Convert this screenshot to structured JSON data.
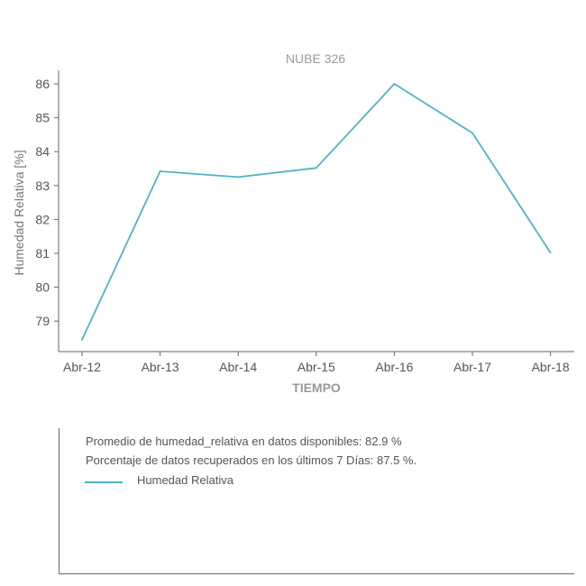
{
  "chart_data": {
    "type": "line",
    "title": "NUBE 326",
    "xlabel": "TIEMPO",
    "ylabel": "Humedad Relativa [%]",
    "categories": [
      "Abr-12",
      "Abr-13",
      "Abr-14",
      "Abr-15",
      "Abr-16",
      "Abr-17",
      "Abr-18"
    ],
    "y_ticks": [
      79,
      80,
      81,
      82,
      83,
      84,
      85,
      86
    ],
    "ylim": [
      78.1,
      86.4
    ],
    "grid": false,
    "series": [
      {
        "name": "Humedad Relativa",
        "color": "#4fb3c2",
        "values": [
          78.45,
          83.42,
          83.25,
          83.52,
          86.0,
          84.55,
          81.02
        ]
      }
    ]
  },
  "info": {
    "line1": "Promedio de humedad_relativa en datos disponibles: 82.9 %",
    "line2": "Porcentaje de datos recuperados en los últimos 7 Días: 87.5 %."
  },
  "legend": {
    "label": "Humedad Relativa",
    "color": "#4fb3c2"
  }
}
